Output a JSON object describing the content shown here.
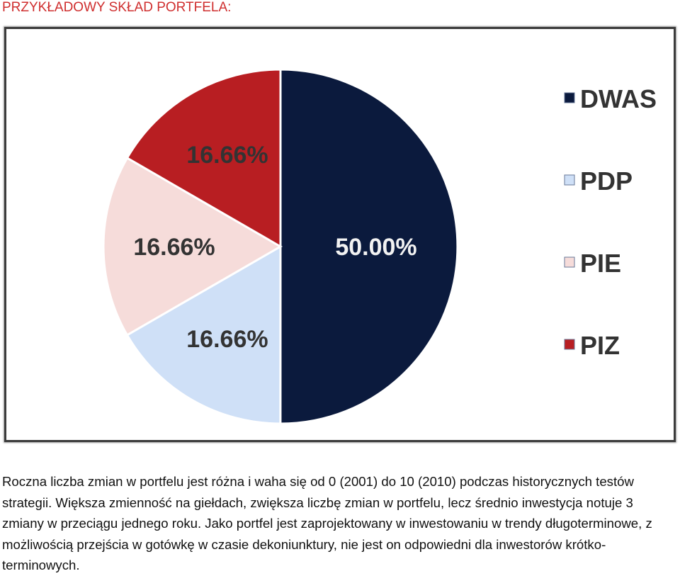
{
  "page": {
    "heading": "PRZYKŁADOWY SKŁAD PORTFELA:",
    "description": "Roczna liczba zmian w portfelu jest różna i waha się od 0 (2001) do 10 (2010) podczas historycznych testów strategii. Większa zmienność na giełdach, zwiększa liczbę zmian w portfelu, lecz średnio inwestycja notuje 3 zmiany w przeciągu jednego roku. Jako portfel jest zaprojektowany w inwestowaniu w trendy długoterminowe, z możliwością przejścia w gotówkę w czasie dekoniunktury, nie jest on odpowiedni dla inwestorów krótko-terminowych."
  },
  "chart_data": {
    "type": "pie",
    "title": "",
    "legend_position": "right",
    "slices": [
      {
        "name": "DWAS",
        "value": 50.0,
        "label": "50.00%",
        "color": "#0b1a3d",
        "label_color": "#f2f2f2"
      },
      {
        "name": "PDP",
        "value": 16.66,
        "label": "16.66%",
        "color": "#cfe0f7",
        "label_color": "#333333"
      },
      {
        "name": "PIE",
        "value": 16.66,
        "label": "16.66%",
        "color": "#f6dcda",
        "label_color": "#333333"
      },
      {
        "name": "PIZ",
        "value": 16.66,
        "label": "16.66%",
        "color": "#b81e22",
        "label_color": "#333333"
      }
    ]
  }
}
